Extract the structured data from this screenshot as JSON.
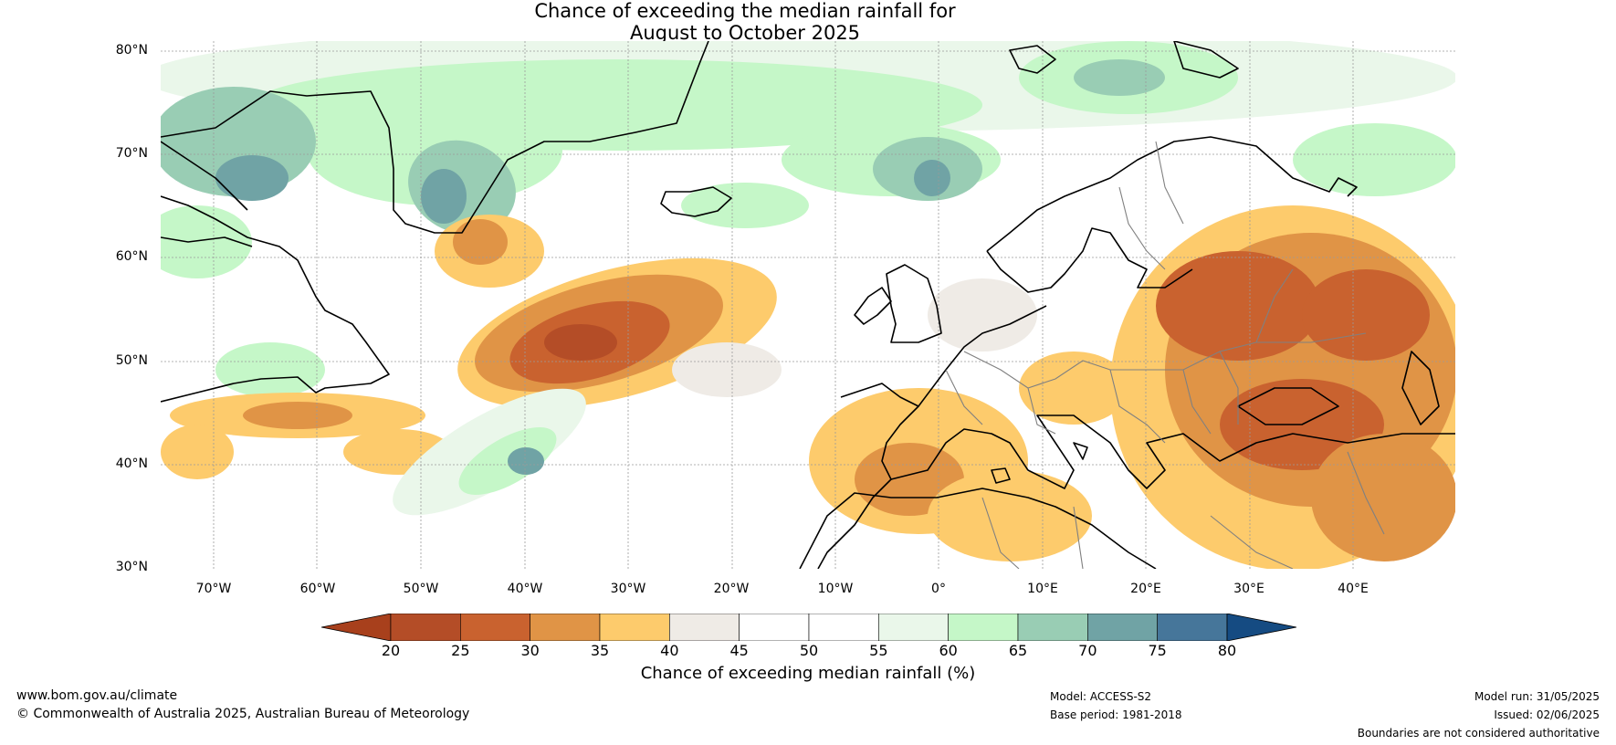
{
  "title_line1": "Chance of exceeding the median rainfall for",
  "title_line2": "August to October 2025",
  "lat_labels": [
    "80°N",
    "70°N",
    "60°N",
    "50°N",
    "40°N",
    "30°N"
  ],
  "lon_labels": [
    "70°W",
    "60°W",
    "50°W",
    "40°W",
    "30°W",
    "20°W",
    "10°W",
    "0°",
    "10°E",
    "20°E",
    "30°E",
    "40°E"
  ],
  "colorbar": {
    "ticks": [
      "20",
      "25",
      "30",
      "35",
      "40",
      "45",
      "50",
      "55",
      "60",
      "65",
      "70",
      "75",
      "80"
    ],
    "colors": [
      "#a8401c",
      "#b44d27",
      "#c9622f",
      "#e09446",
      "#fdcb6c",
      "#efebe6",
      "#ffffff",
      "#ffffff",
      "#eaf7ea",
      "#c5f7c8",
      "#99cdb4",
      "#70a3a5",
      "#46769a",
      "#154b82"
    ],
    "label": "Chance of exceeding median rainfall (%)"
  },
  "footer": {
    "website": "www.bom.gov.au/climate",
    "copyright": "© Commonwealth of Australia 2025, Australian Bureau of Meteorology",
    "model": "Model: ACCESS-S2",
    "base_period": "Base period: 1981-2018",
    "model_run": "Model run: 31/05/2025",
    "issued": "Issued: 02/06/2025",
    "disclaimer": "Boundaries are not considered authoritative"
  }
}
